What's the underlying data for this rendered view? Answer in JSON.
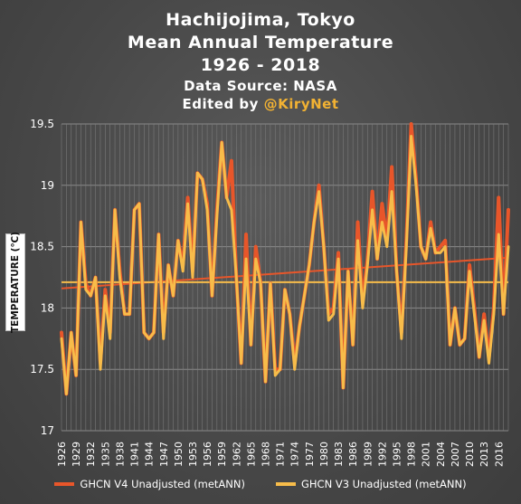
{
  "header": {
    "title_line1": "Hachijojima, Tokyo",
    "title_line2": "Mean Annual Temperature",
    "title_line3": "1926 - 2018",
    "source": "Data Source: NASA",
    "edited_prefix": "Edited by ",
    "edited_handle": "@KiryNet"
  },
  "chart_data": {
    "type": "line",
    "title": "Hachijojima, Tokyo Mean Annual Temperature 1926 - 2018",
    "ylabel": "TEMPERATURE (℃)",
    "xlabel": "",
    "ylim": [
      17,
      19.5
    ],
    "yticks": [
      "17",
      "17.5",
      "18",
      "18.5",
      "19",
      "19.5"
    ],
    "x_tick_labels": [
      "1926",
      "1929",
      "1932",
      "1935",
      "1938",
      "1941",
      "1944",
      "1947",
      "1950",
      "1953",
      "1956",
      "1959",
      "1962",
      "1965",
      "1968",
      "1971",
      "1974",
      "1977",
      "1980",
      "1983",
      "1986",
      "1989",
      "1992",
      "1995",
      "1998",
      "2001",
      "2004",
      "2007",
      "2010",
      "2013",
      "2016"
    ],
    "x": [
      1926,
      1927,
      1928,
      1929,
      1930,
      1931,
      1932,
      1933,
      1934,
      1935,
      1936,
      1937,
      1938,
      1939,
      1940,
      1941,
      1942,
      1943,
      1944,
      1945,
      1946,
      1947,
      1948,
      1949,
      1950,
      1951,
      1952,
      1953,
      1954,
      1955,
      1956,
      1957,
      1958,
      1959,
      1960,
      1961,
      1962,
      1963,
      1964,
      1965,
      1966,
      1967,
      1968,
      1969,
      1970,
      1971,
      1972,
      1973,
      1974,
      1975,
      1976,
      1977,
      1978,
      1979,
      1980,
      1981,
      1982,
      1983,
      1984,
      1985,
      1986,
      1987,
      1988,
      1989,
      1990,
      1991,
      1992,
      1993,
      1994,
      1995,
      1996,
      1997,
      1998,
      1999,
      2000,
      2001,
      2002,
      2003,
      2004,
      2005,
      2006,
      2007,
      2008,
      2009,
      2010,
      2011,
      2012,
      2013,
      2014,
      2015,
      2016,
      2017,
      2018
    ],
    "grid": true,
    "legend_position": "bottom",
    "series": [
      {
        "name": "GHCN V4 Unadjusted (metANN)",
        "color": "#e8562a",
        "values": [
          17.8,
          17.3,
          17.8,
          17.45,
          18.7,
          18.2,
          18.1,
          18.25,
          17.55,
          18.15,
          17.8,
          18.8,
          18.3,
          17.95,
          17.95,
          18.8,
          18.85,
          17.8,
          17.75,
          17.8,
          18.6,
          17.8,
          18.35,
          18.1,
          18.55,
          18.35,
          18.9,
          18.3,
          19.1,
          19.05,
          18.85,
          18.1,
          18.8,
          19.35,
          18.9,
          19.2,
          18.25,
          17.55,
          18.6,
          17.7,
          18.5,
          18.2,
          17.4,
          18.2,
          17.5,
          17.5,
          18.15,
          17.95,
          17.55,
          17.85,
          18.1,
          18.35,
          18.7,
          19.0,
          18.5,
          17.95,
          18.0,
          18.45,
          17.35,
          18.3,
          17.7,
          18.7,
          18.05,
          18.4,
          18.95,
          18.4,
          18.85,
          18.55,
          19.15,
          18.3,
          17.8,
          18.55,
          19.5,
          19.05,
          18.5,
          18.4,
          18.7,
          18.45,
          18.5,
          18.55,
          17.7,
          18.0,
          17.7,
          17.75,
          18.35,
          18.0,
          17.6,
          17.95,
          17.6,
          18.0,
          18.9,
          17.95,
          18.8
        ]
      },
      {
        "name": "GHCN V3 Unadjusted (metANN)",
        "color": "#f7bc4a",
        "values": [
          17.75,
          17.3,
          17.8,
          17.45,
          18.7,
          18.15,
          18.1,
          18.25,
          17.5,
          18.1,
          17.75,
          18.8,
          18.25,
          17.95,
          17.95,
          18.8,
          18.85,
          17.8,
          17.75,
          17.8,
          18.6,
          17.75,
          18.35,
          18.1,
          18.55,
          18.3,
          18.85,
          18.25,
          19.1,
          19.05,
          18.8,
          18.1,
          18.75,
          19.35,
          18.9,
          18.8,
          18.25,
          17.55,
          18.4,
          17.7,
          18.4,
          18.2,
          17.4,
          18.2,
          17.45,
          17.5,
          18.15,
          17.95,
          17.5,
          17.85,
          18.1,
          18.35,
          18.7,
          18.95,
          18.5,
          17.9,
          17.95,
          18.4,
          17.35,
          18.3,
          17.7,
          18.55,
          18.0,
          18.35,
          18.8,
          18.4,
          18.7,
          18.5,
          18.95,
          18.3,
          17.75,
          18.5,
          19.4,
          19.0,
          18.5,
          18.4,
          18.65,
          18.45,
          18.45,
          18.5,
          17.7,
          18.0,
          17.7,
          17.75,
          18.3,
          17.95,
          17.6,
          17.9,
          17.55,
          17.95,
          18.6,
          17.95,
          18.5
        ]
      }
    ],
    "trendlines": [
      {
        "series": "GHCN V4 Unadjusted (metANN)",
        "color": "#e8562a",
        "start": 18.16,
        "end": 18.41
      },
      {
        "series": "GHCN V3 Unadjusted (metANN)",
        "color": "#f7bc4a",
        "start": 18.21,
        "end": 18.21
      }
    ]
  },
  "legend": [
    {
      "label": "GHCN V4 Unadjusted (metANN)",
      "color": "#e8562a"
    },
    {
      "label": "GHCN V3 Unadjusted (metANN)",
      "color": "#f7bc4a"
    }
  ]
}
